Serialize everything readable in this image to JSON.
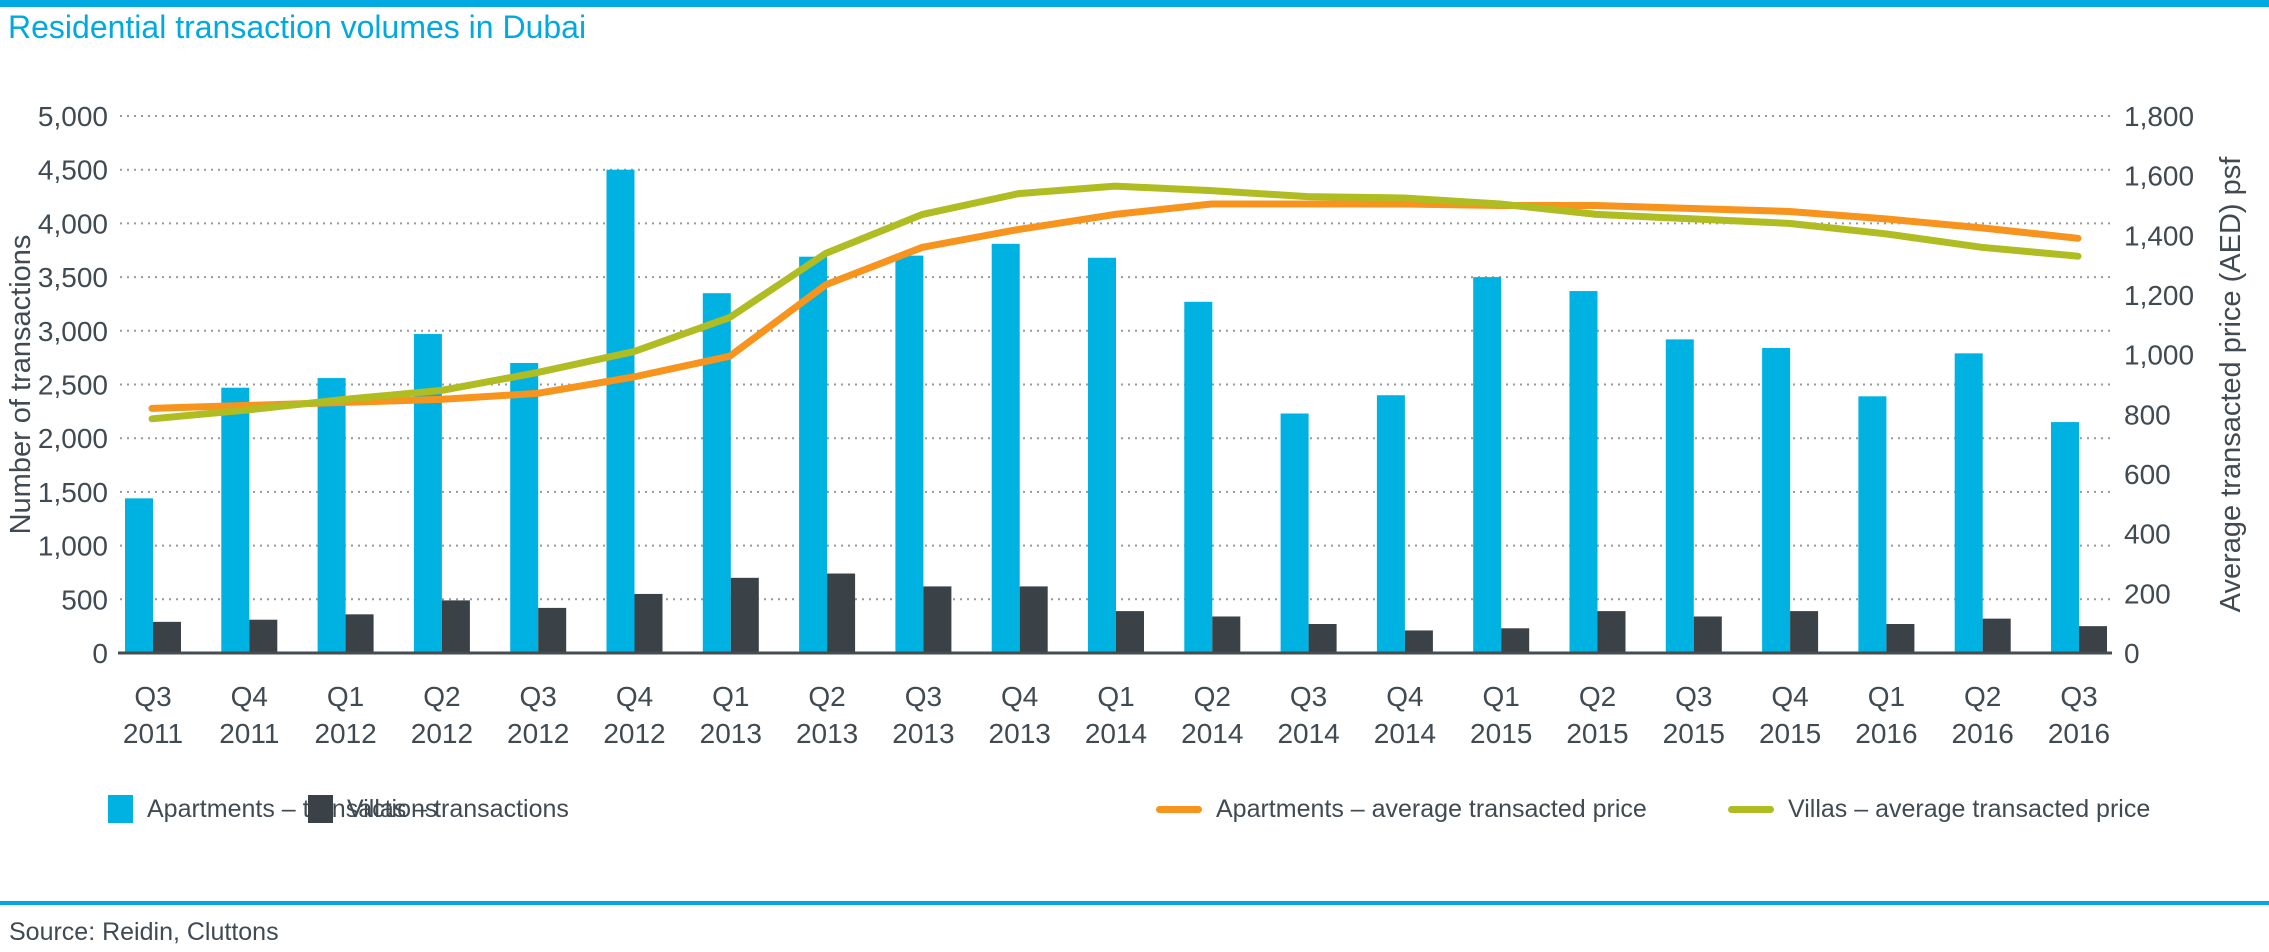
{
  "page": {
    "title": "Residential transaction volumes in Dubai",
    "source": "Source: Reidin, Cluttons"
  },
  "colors": {
    "accent_cyan": "#00a9e0",
    "bar_apartments": "#00b2e2",
    "bar_villas": "#3a4247",
    "line_apartments_price": "#f7941e",
    "line_villas_price": "#afbc22",
    "text": "#3f4a52",
    "gridline": "#97999b",
    "axis_line": "#454c52"
  },
  "chart_data": {
    "type": "bar",
    "subtype": "dual-axis bar + line",
    "grid": "dotted horizontal gridlines",
    "legend_position": "bottom",
    "categories": [
      "Q3 2011",
      "Q4 2011",
      "Q1 2012",
      "Q2 2012",
      "Q3 2012",
      "Q4 2012",
      "Q1 2013",
      "Q2 2013",
      "Q3 2013",
      "Q4 2013",
      "Q1 2014",
      "Q2 2014",
      "Q3 2014",
      "Q4 2014",
      "Q1 2015",
      "Q2 2015",
      "Q3 2015",
      "Q4 2015",
      "Q1 2016",
      "Q2 2016",
      "Q3 2016"
    ],
    "left_axis": {
      "label": "Number of transactions",
      "min": 0,
      "max": 5000,
      "step": 500
    },
    "right_axis": {
      "label": "Average transacted price (AED) psf",
      "min": 0,
      "max": 1800,
      "step": 200
    },
    "series": [
      {
        "name": "Apartments – transactions",
        "type": "bar",
        "axis": "left",
        "color": "#00b2e2",
        "values": [
          1440,
          2470,
          2560,
          2970,
          2700,
          4500,
          3350,
          3690,
          3700,
          3810,
          3680,
          3270,
          2230,
          2400,
          3500,
          3370,
          2920,
          2840,
          2390,
          2790,
          2150
        ]
      },
      {
        "name": "Villas – transactions",
        "type": "bar",
        "axis": "left",
        "color": "#3a4247",
        "values": [
          290,
          310,
          360,
          490,
          420,
          550,
          700,
          740,
          620,
          620,
          390,
          340,
          270,
          210,
          230,
          390,
          340,
          390,
          270,
          320,
          250
        ]
      },
      {
        "name": "Apartments – average transacted price",
        "type": "line",
        "axis": "right",
        "color": "#f7941e",
        "values": [
          820,
          830,
          840,
          850,
          870,
          925,
          995,
          1235,
          1360,
          1420,
          1470,
          1505,
          1505,
          1505,
          1500,
          1500,
          1490,
          1480,
          1455,
          1425,
          1390
        ]
      },
      {
        "name": "Villas – average transacted price",
        "type": "line",
        "axis": "right",
        "color": "#afbc22",
        "values": [
          785,
          815,
          850,
          880,
          940,
          1010,
          1125,
          1340,
          1470,
          1540,
          1565,
          1550,
          1530,
          1525,
          1505,
          1470,
          1455,
          1440,
          1405,
          1360,
          1330
        ]
      }
    ]
  }
}
